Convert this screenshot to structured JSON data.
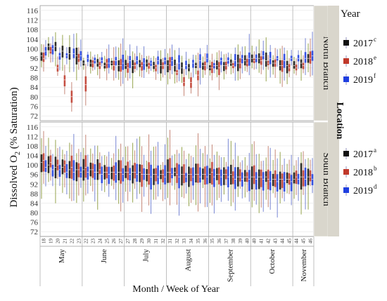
{
  "chart_data": {
    "type": "box",
    "ylabel_main": "Dissolved O",
    "ylabel_sub": "2",
    "ylabel_rest": " (% Saturation)",
    "xlabel": "Month / Week of Year",
    "ylim": [
      70,
      118
    ],
    "yticks": [
      72,
      76,
      80,
      84,
      88,
      92,
      96,
      100,
      104,
      108,
      112,
      116
    ],
    "weeks": [
      "18",
      "19",
      "20",
      "21",
      "22",
      "23",
      "22",
      "23",
      "24",
      "25",
      "26",
      "27",
      "27",
      "28",
      "29",
      "30",
      "31",
      "32",
      "31",
      "32",
      "33",
      "34",
      "35",
      "36",
      "35",
      "36",
      "37",
      "38",
      "39",
      "40",
      "40",
      "41",
      "42",
      "43",
      "44",
      "45",
      "44",
      "45",
      "46"
    ],
    "months": [
      {
        "name": "May",
        "weeks": 6
      },
      {
        "name": "June",
        "weeks": 6
      },
      {
        "name": "July",
        "weeks": 6
      },
      {
        "name": "August",
        "weeks": 6
      },
      {
        "name": "September",
        "weeks": 6
      },
      {
        "name": "October",
        "weeks": 6
      },
      {
        "name": "November",
        "weeks": 3
      }
    ],
    "facet_title": "Location",
    "facets": [
      "North Branch",
      "South Branch"
    ],
    "legend": {
      "title": "Year",
      "north": [
        {
          "label": "2017",
          "sup": "c",
          "color": "#111111"
        },
        {
          "label": "2018",
          "sup": "e",
          "color": "#c0392b"
        },
        {
          "label": "2019",
          "sup": "f",
          "color": "#1f3fe0"
        }
      ],
      "south": [
        {
          "label": "2017",
          "sup": "a",
          "color": "#111111"
        },
        {
          "label": "2018",
          "sup": "b",
          "color": "#c0392b"
        },
        {
          "label": "2019",
          "sup": "d",
          "color": "#1f3fe0"
        }
      ]
    },
    "series": [
      {
        "name": "2017",
        "color": "#111111"
      },
      {
        "name": "2018",
        "color": "#c0392b"
      },
      {
        "name": "2019",
        "color": "#1f3fe0"
      }
    ],
    "north_medians": [
      [
        97,
        101,
        101,
        99,
        98,
        97,
        94,
        94,
        94,
        93,
        94,
        93,
        93,
        93,
        94,
        94,
        93,
        93,
        93,
        93,
        92,
        92,
        93,
        93,
        92,
        93,
        93,
        94,
        94,
        95,
        96,
        96,
        95,
        94,
        93,
        93,
        93,
        94,
        96
      ],
      [
        96,
        99,
        92,
        87,
        80,
        96,
        85,
        94,
        93,
        94,
        93,
        93,
        92,
        93,
        93,
        93,
        92,
        93,
        94,
        90,
        86,
        86,
        89,
        93,
        92,
        92,
        93,
        93,
        94,
        94,
        95,
        95,
        94,
        94,
        93,
        92,
        92,
        93,
        96
      ],
      [
        99,
        100,
        97,
        97,
        98,
        97,
        96,
        95,
        95,
        94,
        95,
        94,
        95,
        95,
        94,
        94,
        95,
        95,
        95,
        94,
        93,
        94,
        95,
        96,
        93,
        95,
        95,
        95,
        96,
        96,
        96,
        97,
        96,
        96,
        95,
        96,
        96,
        96,
        97
      ]
    ],
    "south_medians": [
      [
        101,
        100,
        99,
        99,
        98,
        98,
        98,
        98,
        97,
        97,
        97,
        97,
        97,
        97,
        97,
        96,
        96,
        96,
        97,
        97,
        96,
        96,
        96,
        96,
        96,
        96,
        96,
        96,
        95,
        95,
        95,
        95,
        95,
        94,
        94,
        94,
        94,
        95,
        95
      ],
      [
        102,
        101,
        100,
        100,
        99,
        98,
        99,
        98,
        98,
        97,
        97,
        97,
        97,
        97,
        96,
        96,
        96,
        96,
        97,
        96,
        96,
        96,
        96,
        96,
        97,
        96,
        96,
        95,
        95,
        95,
        95,
        95,
        94,
        94,
        94,
        94,
        95,
        95,
        95
      ],
      [
        99,
        98,
        98,
        97,
        97,
        97,
        97,
        97,
        96,
        96,
        96,
        96,
        96,
        96,
        96,
        95,
        95,
        95,
        96,
        95,
        95,
        95,
        95,
        95,
        95,
        95,
        95,
        94,
        94,
        94,
        94,
        94,
        93,
        93,
        93,
        93,
        94,
        94,
        94
      ]
    ]
  }
}
